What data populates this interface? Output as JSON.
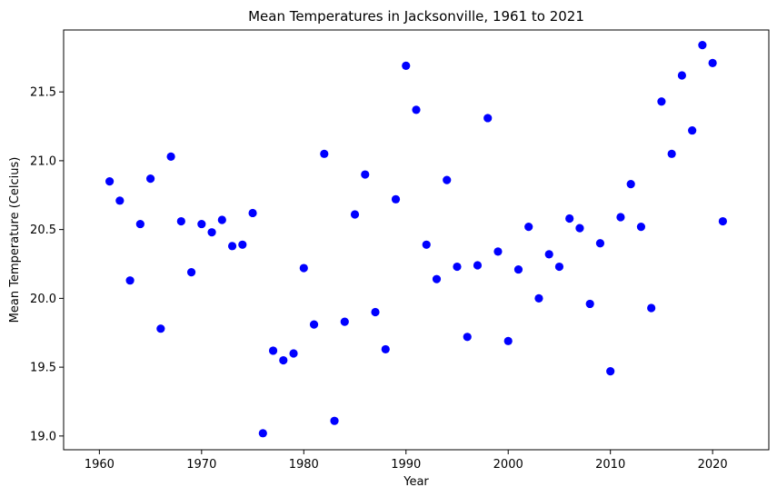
{
  "chart_data": {
    "type": "scatter",
    "title": "Mean Temperatures in Jacksonville, 1961 to 2021",
    "xlabel": "Year",
    "ylabel": "Mean Temperature (Celcius)",
    "xlim": [
      1956.5,
      2025.5
    ],
    "ylim": [
      18.9,
      21.95
    ],
    "xticks": [
      1960,
      1970,
      1980,
      1990,
      2000,
      2010,
      2020
    ],
    "yticks": [
      19.0,
      19.5,
      20.0,
      20.5,
      21.0,
      21.5
    ],
    "ytick_labels": [
      "19.0",
      "19.5",
      "20.0",
      "20.5",
      "21.0",
      "21.5"
    ],
    "grid": false,
    "marker_color": "#0000ff",
    "series": [
      {
        "x": [
          1961,
          1962,
          1963,
          1964,
          1965,
          1966,
          1967,
          1968,
          1969,
          1970,
          1971,
          1972,
          1973,
          1974,
          1975,
          1976,
          1977,
          1978,
          1979,
          1980,
          1981,
          1982,
          1983,
          1984,
          1985,
          1986,
          1987,
          1988,
          1989,
          1990,
          1991,
          1992,
          1993,
          1994,
          1995,
          1996,
          1997,
          1998,
          1999,
          2000,
          2001,
          2002,
          2003,
          2004,
          2005,
          2006,
          2007,
          2008,
          2009,
          2010,
          2011,
          2012,
          2013,
          2014,
          2015,
          2016,
          2017,
          2018,
          2019,
          2020,
          2021
        ],
        "y": [
          20.85,
          20.71,
          20.13,
          20.54,
          20.87,
          19.78,
          21.03,
          20.56,
          20.19,
          20.54,
          20.48,
          20.57,
          20.38,
          20.39,
          20.62,
          19.02,
          19.62,
          19.55,
          19.6,
          20.22,
          19.81,
          21.05,
          19.11,
          19.83,
          20.61,
          20.9,
          19.9,
          19.63,
          20.72,
          21.69,
          21.37,
          20.39,
          20.14,
          20.86,
          20.23,
          19.72,
          20.24,
          21.31,
          20.34,
          19.69,
          20.21,
          20.52,
          20.0,
          20.32,
          20.23,
          20.58,
          20.51,
          19.96,
          20.4,
          19.47,
          20.59,
          20.83,
          20.52,
          19.93,
          21.43,
          21.05,
          21.62,
          21.22,
          21.84,
          21.71,
          20.56
        ]
      }
    ]
  }
}
